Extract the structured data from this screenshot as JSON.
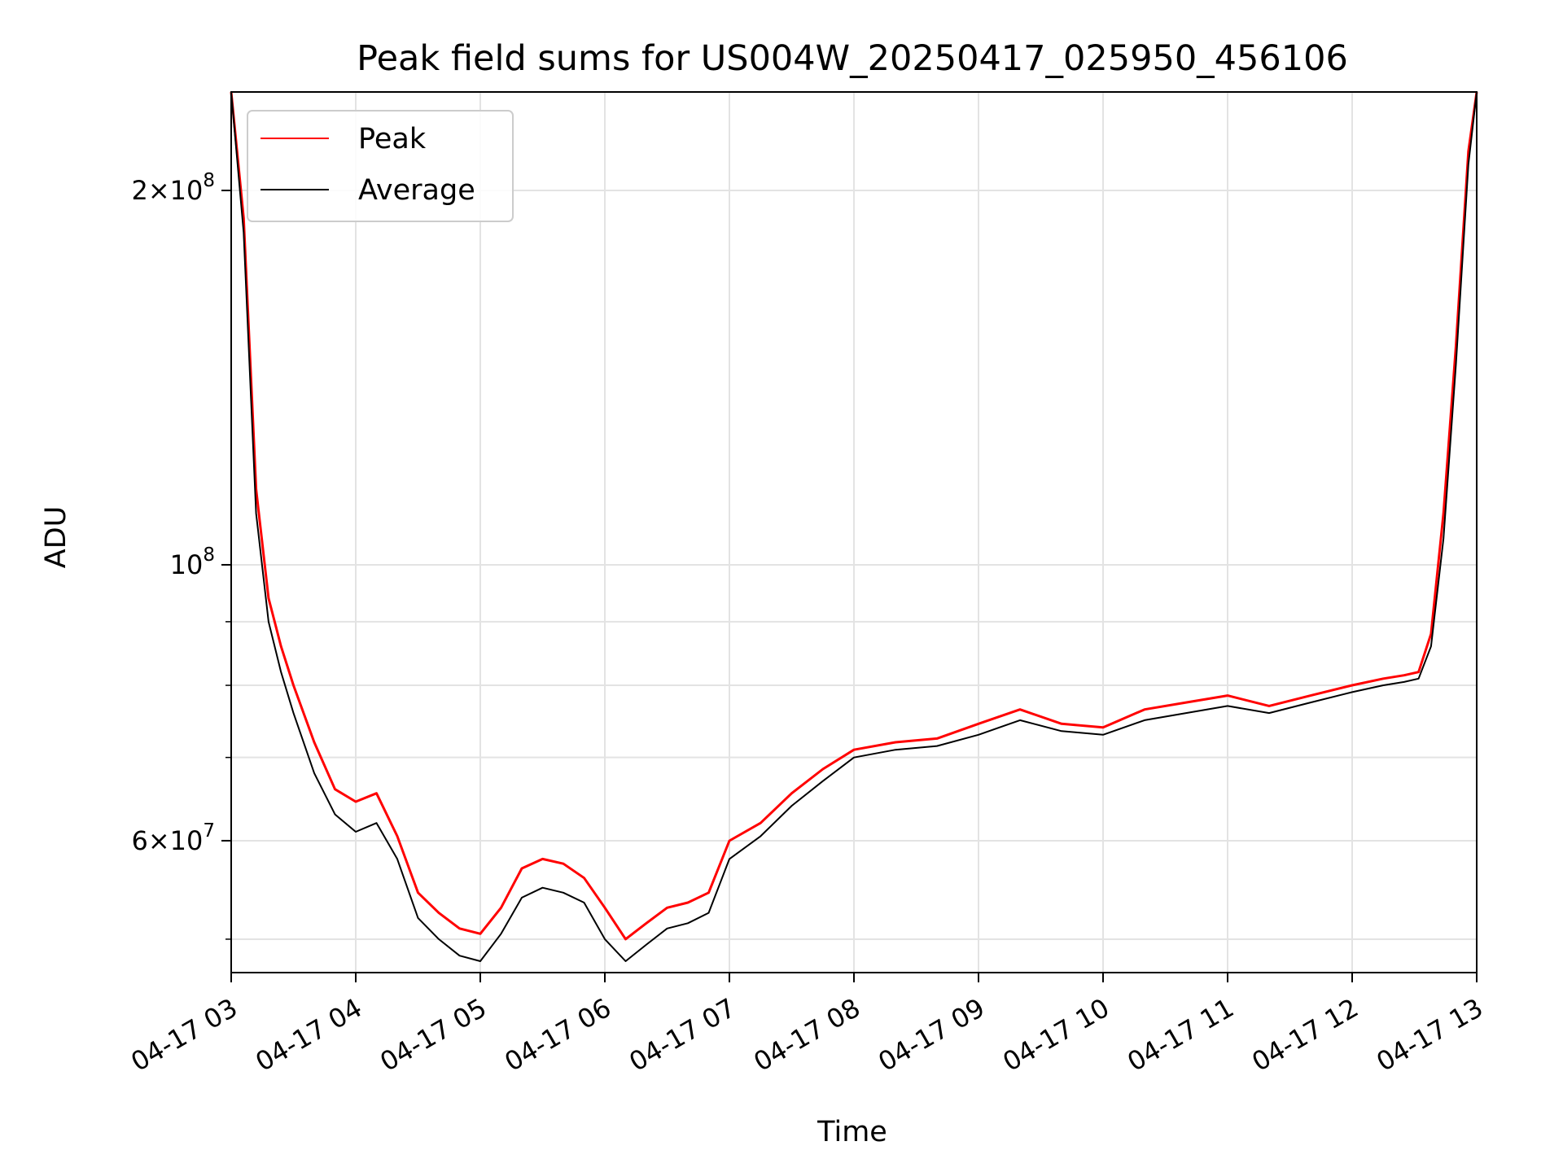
{
  "chart_data": {
    "type": "line",
    "title": "Peak field sums for US004W_20250417_025950_456106",
    "xlabel": "Time",
    "ylabel": "ADU",
    "y_scale": "log",
    "ylim": [
      47000000,
      240000000
    ],
    "xlim": [
      "2025-04-17 03:00",
      "2025-04-17 13:00"
    ],
    "x_tick_labels": [
      "04-17 03",
      "04-17 04",
      "04-17 05",
      "04-17 06",
      "04-17 07",
      "04-17 08",
      "04-17 09",
      "04-17 10",
      "04-17 11",
      "04-17 12",
      "04-17 13"
    ],
    "x_tick_values": [
      "2025-04-17 03:00",
      "2025-04-17 04:00",
      "2025-04-17 05:00",
      "2025-04-17 06:00",
      "2025-04-17 07:00",
      "2025-04-17 08:00",
      "2025-04-17 09:00",
      "2025-04-17 10:00",
      "2025-04-17 11:00",
      "2025-04-17 12:00",
      "2025-04-17 13:00"
    ],
    "y_ticks": [
      {
        "value": 60000000,
        "mantissa": "6",
        "exponent": "7"
      },
      {
        "value": 100000000,
        "mantissa": "",
        "exponent": "8"
      },
      {
        "value": 200000000,
        "mantissa": "2",
        "exponent": "8"
      }
    ],
    "y_minor_ticks": [
      50000000,
      70000000,
      80000000,
      90000000
    ],
    "grid": true,
    "legend_position": "top-left",
    "series": [
      {
        "name": "Peak",
        "color": "#ff0000",
        "x": [
          "2025-04-17 03:00",
          "2025-04-17 03:06",
          "2025-04-17 03:12",
          "2025-04-17 03:18",
          "2025-04-17 03:24",
          "2025-04-17 03:30",
          "2025-04-17 03:40",
          "2025-04-17 03:50",
          "2025-04-17 04:00",
          "2025-04-17 04:10",
          "2025-04-17 04:20",
          "2025-04-17 04:30",
          "2025-04-17 04:40",
          "2025-04-17 04:50",
          "2025-04-17 05:00",
          "2025-04-17 05:10",
          "2025-04-17 05:20",
          "2025-04-17 05:30",
          "2025-04-17 05:40",
          "2025-04-17 05:50",
          "2025-04-17 06:00",
          "2025-04-17 06:10",
          "2025-04-17 06:20",
          "2025-04-17 06:30",
          "2025-04-17 06:40",
          "2025-04-17 06:50",
          "2025-04-17 07:00",
          "2025-04-17 07:15",
          "2025-04-17 07:30",
          "2025-04-17 07:45",
          "2025-04-17 08:00",
          "2025-04-17 08:20",
          "2025-04-17 08:40",
          "2025-04-17 09:00",
          "2025-04-17 09:20",
          "2025-04-17 09:40",
          "2025-04-17 10:00",
          "2025-04-17 10:20",
          "2025-04-17 10:40",
          "2025-04-17 11:00",
          "2025-04-17 11:20",
          "2025-04-17 11:40",
          "2025-04-17 12:00",
          "2025-04-17 12:15",
          "2025-04-17 12:25",
          "2025-04-17 12:32",
          "2025-04-17 12:38",
          "2025-04-17 12:44",
          "2025-04-17 12:50",
          "2025-04-17 12:56",
          "2025-04-17 13:00"
        ],
        "values": [
          240000000,
          190000000,
          115000000,
          94000000,
          86000000,
          80000000,
          72000000,
          66000000,
          64500000,
          65500000,
          60500000,
          54500000,
          52500000,
          51000000,
          50500000,
          53000000,
          57000000,
          58000000,
          57500000,
          56000000,
          53000000,
          50000000,
          51500000,
          53000000,
          53500000,
          54500000,
          60000000,
          62000000,
          65500000,
          68500000,
          71000000,
          72000000,
          72500000,
          74500000,
          76500000,
          74500000,
          74000000,
          76500000,
          77500000,
          78500000,
          77000000,
          78500000,
          80000000,
          81000000,
          81500000,
          82000000,
          88000000,
          110000000,
          150000000,
          215000000,
          240000000
        ]
      },
      {
        "name": "Average",
        "color": "#000000",
        "x": [
          "2025-04-17 03:00",
          "2025-04-17 03:06",
          "2025-04-17 03:12",
          "2025-04-17 03:18",
          "2025-04-17 03:24",
          "2025-04-17 03:30",
          "2025-04-17 03:40",
          "2025-04-17 03:50",
          "2025-04-17 04:00",
          "2025-04-17 04:10",
          "2025-04-17 04:20",
          "2025-04-17 04:30",
          "2025-04-17 04:40",
          "2025-04-17 04:50",
          "2025-04-17 05:00",
          "2025-04-17 05:10",
          "2025-04-17 05:20",
          "2025-04-17 05:30",
          "2025-04-17 05:40",
          "2025-04-17 05:50",
          "2025-04-17 06:00",
          "2025-04-17 06:10",
          "2025-04-17 06:20",
          "2025-04-17 06:30",
          "2025-04-17 06:40",
          "2025-04-17 06:50",
          "2025-04-17 07:00",
          "2025-04-17 07:15",
          "2025-04-17 07:30",
          "2025-04-17 07:45",
          "2025-04-17 08:00",
          "2025-04-17 08:20",
          "2025-04-17 08:40",
          "2025-04-17 09:00",
          "2025-04-17 09:20",
          "2025-04-17 09:40",
          "2025-04-17 10:00",
          "2025-04-17 10:20",
          "2025-04-17 10:40",
          "2025-04-17 11:00",
          "2025-04-17 11:20",
          "2025-04-17 11:40",
          "2025-04-17 12:00",
          "2025-04-17 12:15",
          "2025-04-17 12:25",
          "2025-04-17 12:32",
          "2025-04-17 12:38",
          "2025-04-17 12:44",
          "2025-04-17 12:50",
          "2025-04-17 12:56",
          "2025-04-17 13:00"
        ],
        "values": [
          240000000,
          185000000,
          110000000,
          90000000,
          82000000,
          76000000,
          68000000,
          63000000,
          61000000,
          62000000,
          58000000,
          52000000,
          50000000,
          48500000,
          48000000,
          50500000,
          54000000,
          55000000,
          54500000,
          53500000,
          50000000,
          48000000,
          49500000,
          51000000,
          51500000,
          52500000,
          58000000,
          60500000,
          64000000,
          67000000,
          70000000,
          71000000,
          71500000,
          73000000,
          75000000,
          73500000,
          73000000,
          75000000,
          76000000,
          77000000,
          76000000,
          77500000,
          79000000,
          80000000,
          80500000,
          81000000,
          86000000,
          105000000,
          145000000,
          210000000,
          240000000
        ]
      }
    ]
  }
}
